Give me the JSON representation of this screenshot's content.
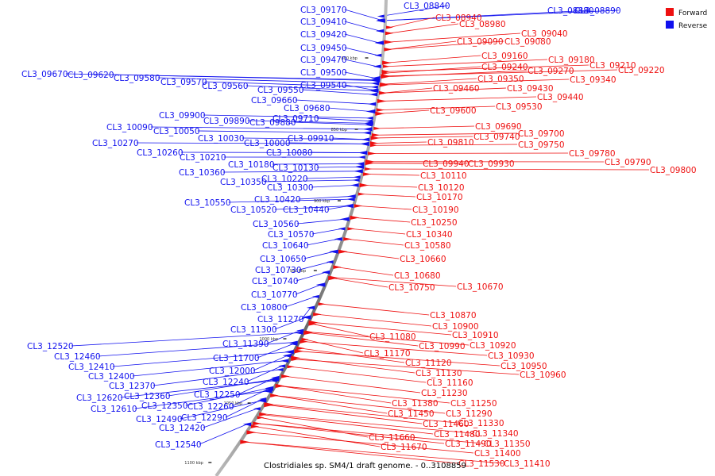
{
  "caption": "Clostridiales sp. SM4/1 draft genome. - 0..3108859",
  "legend": [
    {
      "label": "Forward",
      "color": "#ee1010"
    },
    {
      "label": "Reverse",
      "color": "#1010ee"
    }
  ],
  "ticks": [
    "800 kbp",
    "850 kbp",
    "900 kbp",
    "950 kbp",
    "1000 kbp",
    "1050 kbp",
    "1100 kbp"
  ],
  "reverse_genes": [
    "CL3_08840",
    "CL3_08880",
    "CL3_08890",
    "CL3_09170",
    "CL3_09410",
    "CL3_09420",
    "CL3_09450",
    "CL3_09470",
    "CL3_09500",
    "CL3_09540",
    "CL3_09550",
    "CL3_09560",
    "CL3_09570",
    "CL3_09580",
    "CL3_09620",
    "CL3_09670",
    "CL3_09660",
    "CL3_09680",
    "CL3_09710",
    "CL3_09880",
    "CL3_09890",
    "CL3_09900",
    "CL3_09910",
    "CL3_10000",
    "CL3_10030",
    "CL3_10050",
    "CL3_10090",
    "CL3_10080",
    "CL3_10270",
    "CL3_10260",
    "CL3_10210",
    "CL3_10180",
    "CL3_10130",
    "CL3_10220",
    "CL3_10300",
    "CL3_10360",
    "CL3_10350",
    "CL3_10420",
    "CL3_10440",
    "CL3_10520",
    "CL3_10550",
    "CL3_10560",
    "CL3_10570",
    "CL3_10640",
    "CL3_10650",
    "CL3_10730",
    "CL3_10740",
    "CL3_10770",
    "CL3_10800",
    "CL3_11270",
    "CL3_11300",
    "CL3_11390",
    "CL3_11700",
    "CL3_12000",
    "CL3_12240",
    "CL3_12250",
    "CL3_12260",
    "CL3_12290",
    "CL3_12350",
    "CL3_12360",
    "CL3_12370",
    "CL3_12400",
    "CL3_12410",
    "CL3_12460",
    "CL3_12520",
    "CL3_12490",
    "CL3_12420",
    "CL3_12540",
    "CL3_12610",
    "CL3_12620"
  ],
  "forward_genes": [
    "CL3_08940",
    "CL3_08980",
    "CL3_09040",
    "CL3_09090",
    "CL3_09080",
    "CL3_09160",
    "CL3_09180",
    "CL3_09210",
    "CL3_09220",
    "CL3_09240",
    "CL3_09270",
    "CL3_09340",
    "CL3_09350",
    "CL3_09430",
    "CL3_09440",
    "CL3_09460",
    "CL3_09530",
    "CL3_09600",
    "CL3_09690",
    "CL3_09700",
    "CL3_09740",
    "CL3_09750",
    "CL3_09780",
    "CL3_09790",
    "CL3_09800",
    "CL3_09810",
    "CL3_09930",
    "CL3_09940",
    "CL3_10110",
    "CL3_10120",
    "CL3_10170",
    "CL3_10190",
    "CL3_10250",
    "CL3_10340",
    "CL3_10580",
    "CL3_10660",
    "CL3_10670",
    "CL3_10680",
    "CL3_10750",
    "CL3_10870",
    "CL3_10900",
    "CL3_10910",
    "CL3_10920",
    "CL3_10930",
    "CL3_10950",
    "CL3_10960",
    "CL3_11080",
    "CL3_10990",
    "CL3_11170",
    "CL3_11120",
    "CL3_11130",
    "CL3_11160",
    "CL3_11230",
    "CL3_11250",
    "CL3_11290",
    "CL3_11380",
    "CL3_11330",
    "CL3_11340",
    "CL3_11350",
    "CL3_11400",
    "CL3_11410",
    "CL3_11450",
    "CL3_11460",
    "CL3_11480",
    "CL3_11490",
    "CL3_11530",
    "CL3_11660",
    "CL3_11670"
  ]
}
